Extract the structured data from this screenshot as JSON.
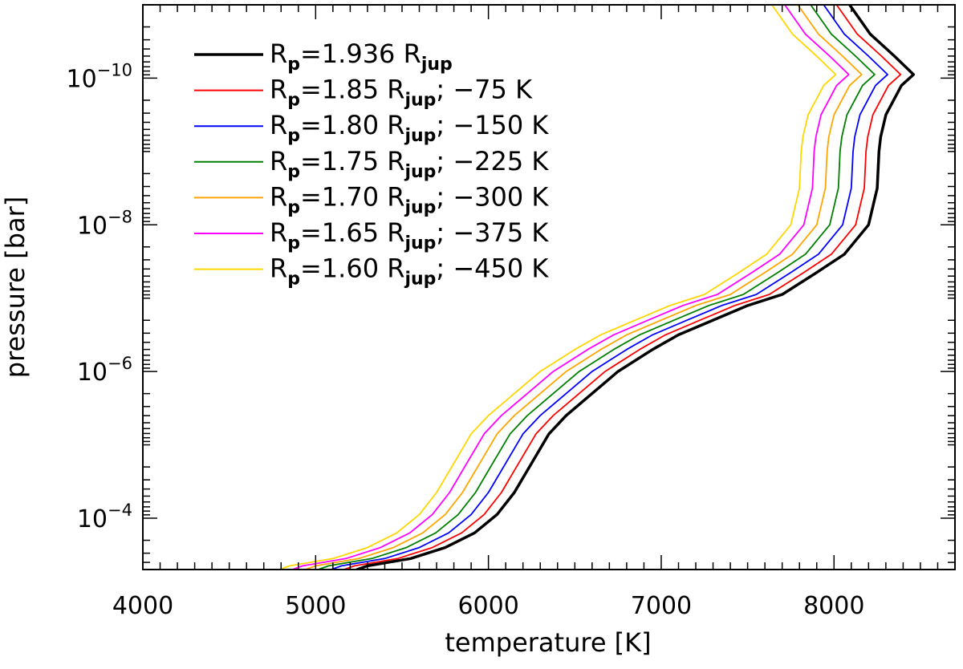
{
  "chart_data": {
    "type": "line",
    "title": "",
    "xlabel": "temperature [K]",
    "ylabel": "pressure [bar]",
    "xlim": [
      4000,
      8700
    ],
    "ylim_log10": [
      -3.3,
      -11.0
    ],
    "y_scale": "log",
    "y_direction": "pressure decreases upward",
    "x_ticks": [
      4000,
      5000,
      6000,
      7000,
      8000
    ],
    "x_tick_labels": [
      "4000",
      "5000",
      "6000",
      "7000",
      "8000"
    ],
    "y_ticks_log10": [
      -10,
      -8,
      -6,
      -4
    ],
    "y_tick_labels": [
      {
        "base": "10",
        "exp": "−10"
      },
      {
        "base": "10",
        "exp": "−8"
      },
      {
        "base": "10",
        "exp": "−6"
      },
      {
        "base": "10",
        "exp": "−4"
      }
    ],
    "legend_position": "top-left",
    "series": [
      {
        "name": "R_p=1.936 R_jup",
        "label_parts": {
          "main": "R",
          "sub": "p",
          "mid": "=1.936 R",
          "sub2": "jup",
          "tail": ""
        },
        "color": "#000000",
        "offset_K": 0
      },
      {
        "name": "R_p=1.85 R_jup; −75 K",
        "label_parts": {
          "main": "R",
          "sub": "p",
          "mid": "=1.85 R",
          "sub2": "jup",
          "tail": "; −75 K"
        },
        "color": "#ff0000",
        "offset_K": -75
      },
      {
        "name": "R_p=1.80 R_jup; −150 K",
        "label_parts": {
          "main": "R",
          "sub": "p",
          "mid": "=1.80 R",
          "sub2": "jup",
          "tail": "; −150 K"
        },
        "color": "#0000ff",
        "offset_K": -150
      },
      {
        "name": "R_p=1.75 R_jup; −225 K",
        "label_parts": {
          "main": "R",
          "sub": "p",
          "mid": "=1.75 R",
          "sub2": "jup",
          "tail": "; −225 K"
        },
        "color": "#008000",
        "offset_K": -225
      },
      {
        "name": "R_p=1.70 R_jup; −300 K",
        "label_parts": {
          "main": "R",
          "sub": "p",
          "mid": "=1.70 R",
          "sub2": "jup",
          "tail": "; −300 K"
        },
        "color": "#ffa500",
        "offset_K": -300
      },
      {
        "name": "R_p=1.65 R_jup; −375 K",
        "label_parts": {
          "main": "R",
          "sub": "p",
          "mid": "=1.65 R",
          "sub2": "jup",
          "tail": "; −375 K"
        },
        "color": "#ff00ff",
        "offset_K": -375
      },
      {
        "name": "R_p=1.60 R_jup; −450 K",
        "label_parts": {
          "main": "R",
          "sub": "p",
          "mid": "=1.60 R",
          "sub2": "jup",
          "tail": "; −450 K"
        },
        "color": "#ffd700",
        "offset_K": -450
      }
    ],
    "base_profile": {
      "description": "temperature [K] vs log10(pressure [bar]) for the R_p=1.936 R_jup case",
      "temperature_K": [
        8090,
        8210,
        8350,
        8460,
        8390,
        8300,
        8270,
        8260,
        8250,
        8200,
        8060,
        7900,
        7700,
        7500,
        7300,
        7100,
        6950,
        6750,
        6600,
        6450,
        6350,
        6250,
        6150,
        6050,
        5920,
        5750,
        5550,
        5300,
        5240,
        5250
      ],
      "log10_pressure": [
        -11.0,
        -10.6,
        -10.3,
        -10.05,
        -9.9,
        -9.5,
        -9.2,
        -9.0,
        -8.5,
        -8.0,
        -7.6,
        -7.35,
        -7.05,
        -6.9,
        -6.7,
        -6.5,
        -6.3,
        -6.0,
        -5.7,
        -5.4,
        -5.15,
        -4.75,
        -4.35,
        -4.05,
        -3.8,
        -3.6,
        -3.45,
        -3.35,
        -3.3,
        -3.28
      ]
    }
  }
}
